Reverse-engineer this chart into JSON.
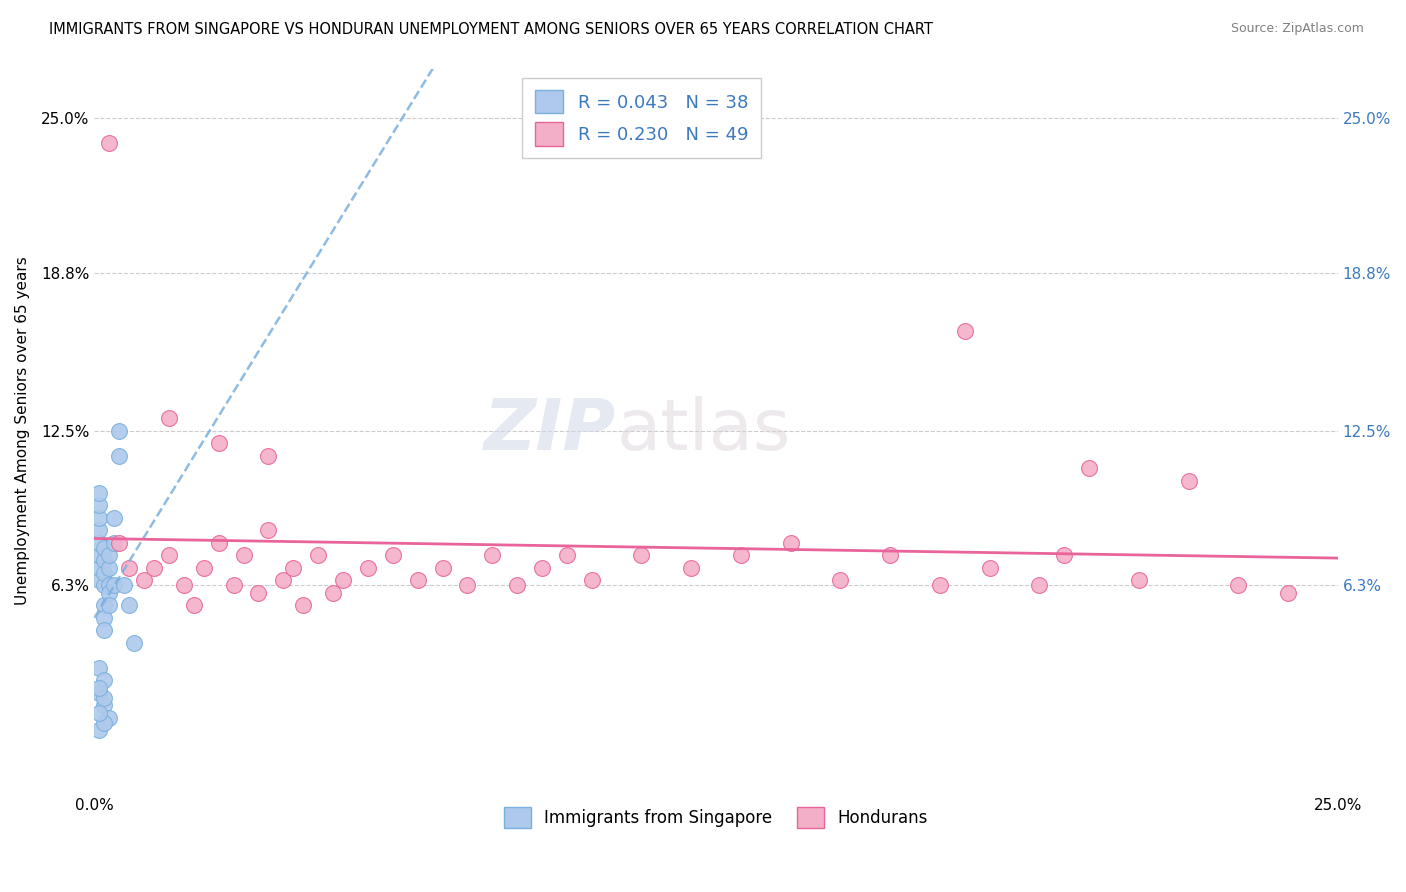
{
  "title": "IMMIGRANTS FROM SINGAPORE VS HONDURAN UNEMPLOYMENT AMONG SENIORS OVER 65 YEARS CORRELATION CHART",
  "source": "Source: ZipAtlas.com",
  "ylabel": "Unemployment Among Seniors over 65 years",
  "xlim": [
    0.0,
    0.25
  ],
  "ylim": [
    -0.02,
    0.27
  ],
  "yticks": [
    0.063,
    0.125,
    0.188,
    0.25
  ],
  "ytick_labels": [
    "6.3%",
    "12.5%",
    "18.8%",
    "25.0%"
  ],
  "right_ytick_labels": [
    "6.3%",
    "12.5%",
    "18.8%",
    "25.0%"
  ],
  "legend_r1": "R = 0.043   N = 38",
  "legend_r2": "R = 0.230   N = 49",
  "legend_label1": "Immigrants from Singapore",
  "legend_label2": "Hondurans",
  "blue_color": "#aec9ec",
  "pink_color": "#f4afc8",
  "blue_line_color": "#7ab0de",
  "pink_line_color": "#e8649a",
  "legend_text_color": "#3c7abf",
  "right_label_color": "#3c7abf",
  "singapore_x": [
    0.001,
    0.001,
    0.001,
    0.001,
    0.001,
    0.001,
    0.001,
    0.001,
    0.002,
    0.002,
    0.002,
    0.002,
    0.002,
    0.002,
    0.002,
    0.003,
    0.003,
    0.003,
    0.003,
    0.003,
    0.004,
    0.004,
    0.004,
    0.005,
    0.005,
    0.006,
    0.007,
    0.008,
    0.001,
    0.002,
    0.001,
    0.002,
    0.003,
    0.001,
    0.002,
    0.001,
    0.002,
    0.001
  ],
  "singapore_y": [
    0.065,
    0.07,
    0.075,
    0.08,
    0.085,
    0.09,
    0.095,
    0.1,
    0.063,
    0.068,
    0.073,
    0.078,
    0.055,
    0.05,
    0.045,
    0.063,
    0.07,
    0.075,
    0.06,
    0.055,
    0.063,
    0.08,
    0.09,
    0.125,
    0.115,
    0.063,
    0.055,
    0.04,
    0.03,
    0.025,
    0.02,
    0.015,
    0.01,
    0.005,
    0.008,
    0.012,
    0.018,
    0.022
  ],
  "honduran_x": [
    0.003,
    0.005,
    0.007,
    0.01,
    0.012,
    0.015,
    0.018,
    0.02,
    0.022,
    0.025,
    0.028,
    0.03,
    0.033,
    0.035,
    0.038,
    0.04,
    0.042,
    0.045,
    0.048,
    0.05,
    0.055,
    0.06,
    0.065,
    0.07,
    0.075,
    0.08,
    0.085,
    0.09,
    0.095,
    0.1,
    0.11,
    0.12,
    0.13,
    0.14,
    0.15,
    0.16,
    0.17,
    0.175,
    0.18,
    0.19,
    0.195,
    0.2,
    0.21,
    0.22,
    0.23,
    0.24,
    0.015,
    0.025,
    0.035
  ],
  "honduran_y": [
    0.24,
    0.08,
    0.07,
    0.065,
    0.07,
    0.075,
    0.063,
    0.055,
    0.07,
    0.08,
    0.063,
    0.075,
    0.06,
    0.085,
    0.065,
    0.07,
    0.055,
    0.075,
    0.06,
    0.065,
    0.07,
    0.075,
    0.065,
    0.07,
    0.063,
    0.075,
    0.063,
    0.07,
    0.075,
    0.065,
    0.075,
    0.07,
    0.075,
    0.08,
    0.065,
    0.075,
    0.063,
    0.165,
    0.07,
    0.063,
    0.075,
    0.11,
    0.065,
    0.105,
    0.063,
    0.06,
    0.13,
    0.12,
    0.115
  ],
  "background_color": "#ffffff",
  "grid_color": "#cccccc"
}
